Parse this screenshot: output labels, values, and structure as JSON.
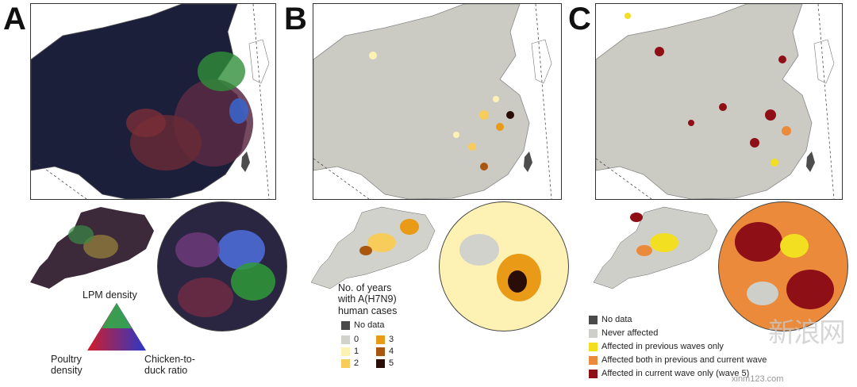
{
  "panels": {
    "a": {
      "letter": "A",
      "legend": {
        "top": "LPM density",
        "left": "Poultry density",
        "right": "Chicken-to-duck ratio"
      }
    },
    "b": {
      "letter": "B",
      "legend": {
        "title_lines": [
          "No. of years",
          "with A(H7N9)",
          "human cases"
        ],
        "no_data": {
          "label": "No data",
          "color": "#4a4a4a"
        },
        "classes": [
          {
            "label": "0",
            "color": "#d2d2cc"
          },
          {
            "label": "1",
            "color": "#fdf2b3"
          },
          {
            "label": "2",
            "color": "#f8cc5a"
          },
          {
            "label": "3",
            "color": "#e99a16"
          },
          {
            "label": "4",
            "color": "#a9560f"
          },
          {
            "label": "5",
            "color": "#2a0d06"
          }
        ]
      }
    },
    "c": {
      "letter": "C",
      "legend": [
        {
          "label": "No data",
          "color": "#4a4a4a"
        },
        {
          "label": "Never affected",
          "color": "#cfcfc9"
        },
        {
          "label": "Affected in previous waves only",
          "color": "#f3df22"
        },
        {
          "label": "Affected both in previous and current wave",
          "color": "#ea8a3a"
        },
        {
          "label": "Affected in current wave only (wave 5)",
          "color": "#8f0f16"
        }
      ]
    }
  },
  "colors": {
    "land": "#cbcbc3",
    "sea": "#ffffff",
    "border": "#7a7a7a",
    "taiwan": "#4d4d4d",
    "dark_bg": "#1c1f3a"
  },
  "watermark": {
    "logo": "新浪网",
    "url": "xinm123.com"
  }
}
